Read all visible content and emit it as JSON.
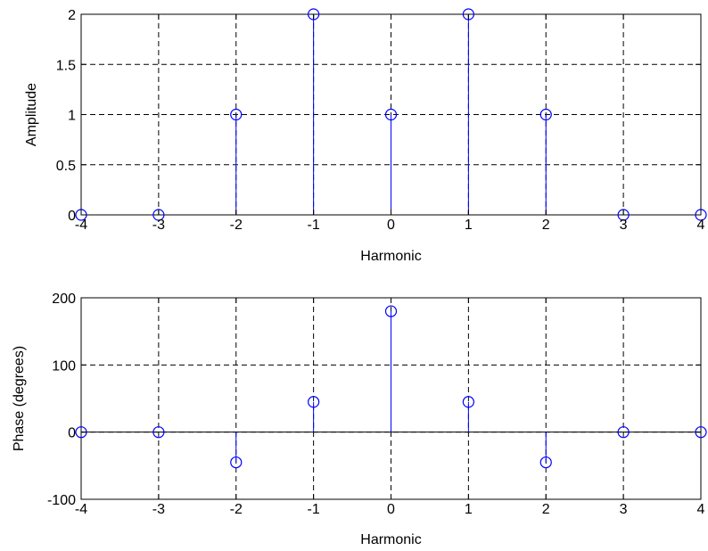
{
  "chart_data": [
    {
      "type": "stem",
      "x": [
        -4,
        -3,
        -2,
        -1,
        0,
        1,
        2,
        3,
        4
      ],
      "y": [
        0,
        0,
        1,
        2,
        1,
        2,
        1,
        0,
        0
      ],
      "xlabel": "Harmonic",
      "ylabel": "Amplitude",
      "xlim": [
        -4,
        4
      ],
      "ylim": [
        0,
        2
      ],
      "xticks": [
        -4,
        -3,
        -2,
        -1,
        0,
        1,
        2,
        3,
        4
      ],
      "yticks": [
        0,
        0.5,
        1,
        1.5,
        2
      ],
      "xtick_labels": [
        "-4",
        "-3",
        "-2",
        "-1",
        "0",
        "1",
        "2",
        "3",
        "4"
      ],
      "ytick_labels": [
        "0",
        "0.5",
        "1",
        "1.5",
        "2"
      ],
      "grid": true,
      "color": "#0000ff",
      "marker": "circle-open"
    },
    {
      "type": "stem",
      "x": [
        -4,
        -3,
        -2,
        -1,
        0,
        1,
        2,
        3,
        4
      ],
      "y": [
        0,
        0,
        -45,
        45,
        180,
        45,
        -45,
        0,
        0
      ],
      "xlabel": "Harmonic",
      "ylabel": "Phase (degrees)",
      "xlim": [
        -4,
        4
      ],
      "ylim": [
        -100,
        200
      ],
      "xticks": [
        -4,
        -3,
        -2,
        -1,
        0,
        1,
        2,
        3,
        4
      ],
      "yticks": [
        -100,
        0,
        100,
        200
      ],
      "xtick_labels": [
        "-4",
        "-3",
        "-2",
        "-1",
        "0",
        "1",
        "2",
        "3",
        "4"
      ],
      "ytick_labels": [
        "-100",
        "0",
        "100",
        "200"
      ],
      "grid": true,
      "color": "#0000ff",
      "marker": "circle-open"
    }
  ]
}
